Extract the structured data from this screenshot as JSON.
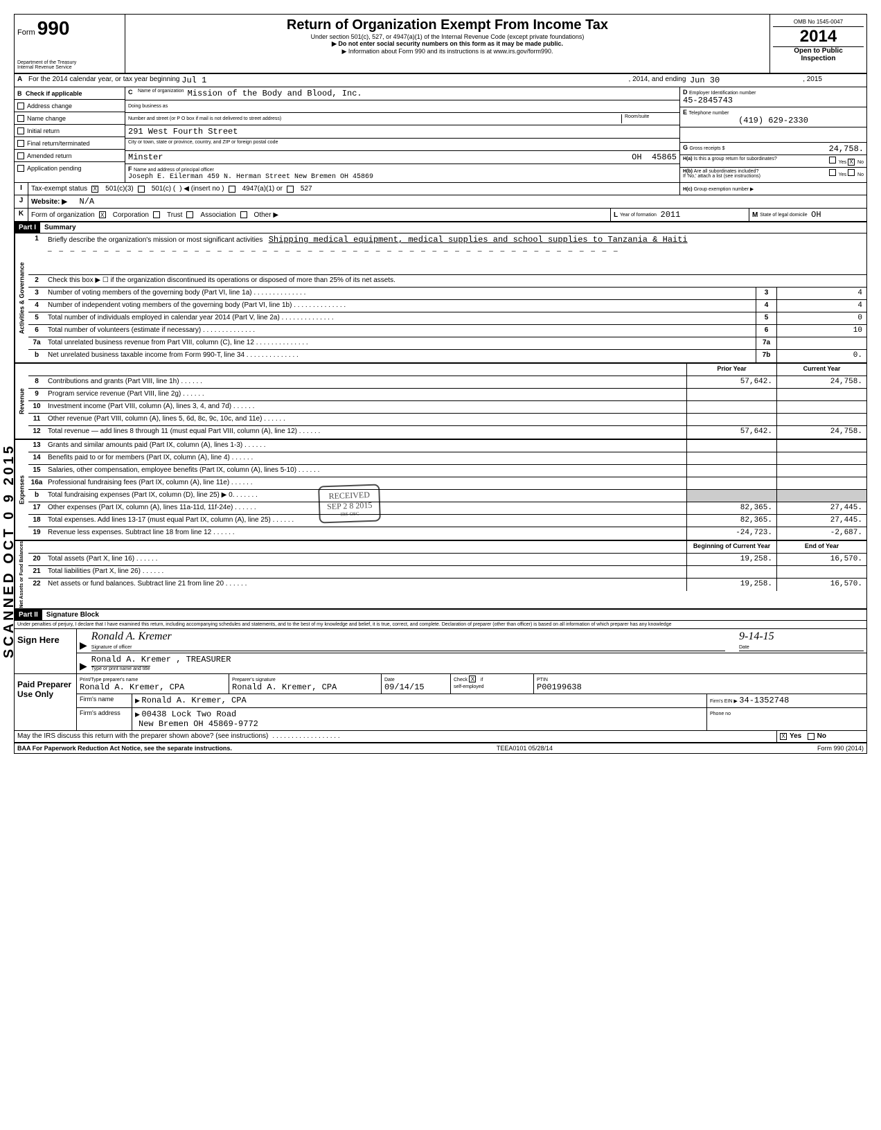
{
  "form": {
    "form_label": "Form",
    "form_number": "990",
    "dept": "Department of the Treasury",
    "irs": "Internal Revenue Service",
    "title": "Return of Organization Exempt From Income Tax",
    "subtitle1": "Under section 501(c), 527, or 4947(a)(1) of the Internal Revenue Code (except private foundations)",
    "subtitle2": "▶ Do not enter social security numbers on this form as it may be made public.",
    "subtitle3": "▶ Information about Form 990 and its instructions is at www.irs.gov/form990.",
    "omb": "OMB No 1545-0047",
    "year": "2014",
    "open": "Open to Public",
    "inspection": "Inspection"
  },
  "rowA": {
    "prefix": "A",
    "text1": "For the 2014 calendar year, or tax year beginning",
    "begin": "Jul 1",
    "text2": ", 2014, and ending",
    "end": "Jun 30",
    "text3": ", 2015"
  },
  "sectionB": {
    "b_label": "B",
    "b_text": "Check if applicable",
    "checks": [
      {
        "label": "Address change",
        "checked": false
      },
      {
        "label": "Name change",
        "checked": false
      },
      {
        "label": "Initial return",
        "checked": false
      },
      {
        "label": "Final return/terminated",
        "checked": false
      },
      {
        "label": "Amended return",
        "checked": false
      },
      {
        "label": "Application pending",
        "checked": false
      }
    ],
    "c_label": "C",
    "c_text": "Name of organization",
    "org_name": "Mission of the Body and Blood, Inc.",
    "dba_label": "Doing business as",
    "dba": "",
    "addr_label": "Number and street (or P O box if mail is not delivered to street address)",
    "room_label": "Room/suite",
    "street": "291 West Fourth Street",
    "city_label": "City or town, state or province, country, and ZIP or foreign postal code",
    "city": "Minster",
    "state": "OH",
    "zip": "45865",
    "f_label": "F",
    "f_text": "Name and address of principal officer",
    "officer": "Joseph E. Eilerman 459 N. Herman Street New Bremen  OH 45869",
    "d_label": "D",
    "d_text": "Employer Identification number",
    "ein": "45-2845743",
    "e_label": "E",
    "e_text": "Telephone number",
    "phone": "(419) 629-2330",
    "g_label": "G",
    "g_text": "Gross receipts $",
    "gross": "24,758.",
    "ha_label": "H(a)",
    "ha_text": "Is this a group return for subordinates?",
    "ha_yes": "Yes",
    "ha_no": "No",
    "ha_no_checked": "X",
    "hb_label": "H(b)",
    "hb_text": "Are all subordinates included?",
    "hb_note": "If 'No,' attach a list (see instructions)",
    "hc_label": "H(c)",
    "hc_text": "Group exemption number ▶"
  },
  "rowI": {
    "label": "I",
    "text": "Tax-exempt status",
    "c3_checked": "X",
    "c3": "501(c)(3)",
    "c": "501(c) (",
    "insert": ") ◀  (insert no )",
    "a4947": "4947(a)(1) or",
    "s527": "527"
  },
  "rowJ": {
    "label": "J",
    "text": "Website: ▶",
    "val": "N/A"
  },
  "rowK": {
    "label": "K",
    "text": "Form of organization",
    "corp_checked": "X",
    "corp": "Corporation",
    "trust": "Trust",
    "assoc": "Association",
    "other": "Other ▶",
    "l_label": "L",
    "l_text": "Year of formation",
    "l_val": "2011",
    "m_label": "M",
    "m_text": "State of legal domicile",
    "m_val": "OH"
  },
  "part1": {
    "header": "Part I",
    "title": "Summary",
    "gov_label": "Activities & Governance",
    "rev_label": "Revenue",
    "exp_label": "Expenses",
    "net_label": "Net Assets or\nFund Balances",
    "line1_num": "1",
    "line1_text": "Briefly describe the organization's mission or most significant activities",
    "line1_val": "Shipping medical equipment, medical supplies and school supplies to Tanzania & Haiti",
    "line2_num": "2",
    "line2_text": "Check this box ▶ ☐ if the organization discontinued its operations or disposed of more than 25% of its net assets.",
    "rows_gov": [
      {
        "n": "3",
        "text": "Number of voting members of the governing body (Part VI, line 1a)",
        "box": "3",
        "val": "4"
      },
      {
        "n": "4",
        "text": "Number of independent voting members of the governing body (Part VI, line 1b)",
        "box": "4",
        "val": "4"
      },
      {
        "n": "5",
        "text": "Total number of individuals employed in calendar year 2014 (Part V, line 2a)",
        "box": "5",
        "val": "0"
      },
      {
        "n": "6",
        "text": "Total number of volunteers (estimate if necessary)",
        "box": "6",
        "val": "10"
      },
      {
        "n": "7a",
        "text": "Total unrelated business revenue from Part VIII, column (C), line 12",
        "box": "7a",
        "val": ""
      },
      {
        "n": "b",
        "text": "Net unrelated business taxable income from Form 990-T, line 34",
        "box": "7b",
        "val": "0."
      }
    ],
    "col_prior": "Prior Year",
    "col_current": "Current Year",
    "rows_rev": [
      {
        "n": "8",
        "text": "Contributions and grants (Part VIII, line 1h)",
        "prior": "57,642.",
        "curr": "24,758."
      },
      {
        "n": "9",
        "text": "Program service revenue (Part VIII, line 2g)",
        "prior": "",
        "curr": ""
      },
      {
        "n": "10",
        "text": "Investment income (Part VIII, column (A), lines 3, 4, and 7d)",
        "prior": "",
        "curr": ""
      },
      {
        "n": "11",
        "text": "Other revenue (Part VIII, column (A), lines 5, 6d, 8c, 9c, 10c, and 11e)",
        "prior": "",
        "curr": ""
      },
      {
        "n": "12",
        "text": "Total revenue — add lines 8 through 11 (must equal Part VIII, column (A), line 12)",
        "prior": "57,642.",
        "curr": "24,758."
      }
    ],
    "rows_exp": [
      {
        "n": "13",
        "text": "Grants and similar amounts paid (Part IX, column (A), lines 1-3)",
        "prior": "",
        "curr": ""
      },
      {
        "n": "14",
        "text": "Benefits paid to or for members (Part IX, column (A), line 4)",
        "prior": "",
        "curr": ""
      },
      {
        "n": "15",
        "text": "Salaries, other compensation, employee benefits (Part IX, column (A), lines 5-10)",
        "prior": "",
        "curr": ""
      },
      {
        "n": "16a",
        "text": "Professional fundraising fees (Part IX, column (A), line 11e)",
        "prior": "",
        "curr": ""
      },
      {
        "n": "b",
        "text": "Total fundraising expenses (Part IX, column (D), line 25) ▶             0.",
        "prior": "grey",
        "curr": "grey"
      },
      {
        "n": "17",
        "text": "Other expenses (Part IX, column (A), lines 11a-11d, 11f-24e)",
        "prior": "82,365.",
        "curr": "27,445."
      },
      {
        "n": "18",
        "text": "Total expenses. Add lines 13-17 (must equal Part IX, column (A), line 25)",
        "prior": "82,365.",
        "curr": "27,445."
      },
      {
        "n": "19",
        "text": "Revenue less expenses. Subtract line 18 from line 12",
        "prior": "-24,723.",
        "curr": "-2,687."
      }
    ],
    "col_begin": "Beginning of Current Year",
    "col_end": "End of Year",
    "rows_net": [
      {
        "n": "20",
        "text": "Total assets (Part X, line 16)",
        "prior": "19,258.",
        "curr": "16,570."
      },
      {
        "n": "21",
        "text": "Total liabilities (Part X, line 26)",
        "prior": "",
        "curr": ""
      },
      {
        "n": "22",
        "text": "Net assets or fund balances. Subtract line 21 from line 20",
        "prior": "19,258.",
        "curr": "16,570."
      }
    ]
  },
  "part2": {
    "header": "Part II",
    "title": "Signature Block",
    "perjury": "Under penalties of perjury, I declare that I have examined this return, including accompanying schedules and statements, and to the best of my knowledge and belief, it is true, correct, and complete. Declaration of preparer (other than officer) is based on all information of which preparer has any knowledge",
    "sign_here": "Sign Here",
    "sig_officer": "Ronald A. Kremer",
    "sig_label": "Signature of officer",
    "sig_date": "9-14-15",
    "date_label": "Date",
    "name_title": "Ronald A. Kremer ,  TREASURER",
    "name_title_label": "Type or print name and title",
    "paid_label": "Paid Preparer Use Only",
    "prep_name_hdr": "Print/Type preparer's name",
    "prep_sig_hdr": "Preparer's signature",
    "prep_date_hdr": "Date",
    "prep_check_hdr": "Check",
    "prep_if": "if",
    "prep_self": "self-employed",
    "prep_self_checked": "X",
    "prep_ptin_hdr": "PTIN",
    "prep_name": "Ronald A. Kremer, CPA",
    "prep_sig": "Ronald A. Kremer, CPA",
    "prep_date": "09/14/15",
    "prep_ptin": "P00199638",
    "firm_name_label": "Firm's name",
    "firm_name": "Ronald A. Kremer, CPA",
    "firm_addr_label": "Firm's address",
    "firm_addr1": "00438 Lock Two Road",
    "firm_addr2": "New Bremen             OH  45869-9772",
    "firm_ein_label": "Firm's EIN ▶",
    "firm_ein": "34-1352748",
    "phone_label": "Phone no",
    "discuss": "May the IRS discuss this return with the preparer shown above? (see instructions)",
    "discuss_yes": "Yes",
    "discuss_yes_checked": "X",
    "discuss_no": "No"
  },
  "footer": {
    "baa": "BAA  For Paperwork Reduction Act Notice, see the separate instructions.",
    "teea": "TEEA0101  05/28/14",
    "form": "Form 990 (2014)"
  },
  "stamp": {
    "received": "RECEIVED",
    "date": "SEP 2 8 2015",
    "irs": "IRS-OSC"
  },
  "scanned": "SCANNED  OCT 0 9 2015"
}
